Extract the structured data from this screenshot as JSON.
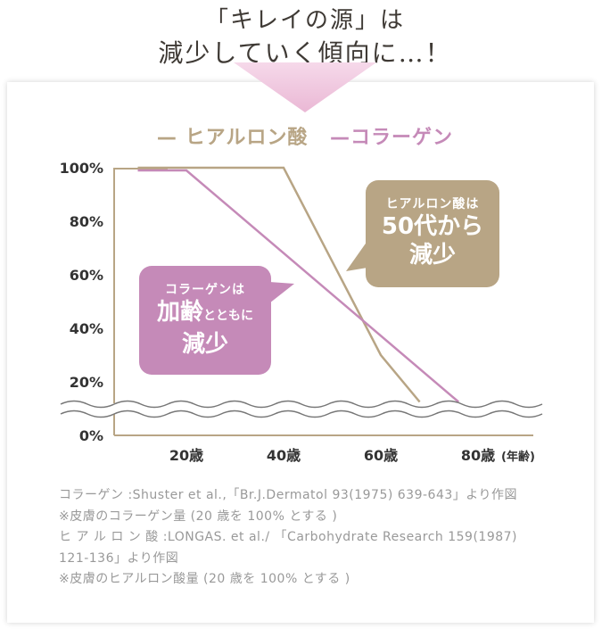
{
  "heading": {
    "line1": "「キレイの源」は",
    "line2": "減少していく傾向に…！"
  },
  "colors": {
    "hyaluronic": "#b8a585",
    "collagen": "#c58ab8",
    "arrow": "#f0c8df",
    "axis": "#b8a585",
    "wave": "#777777"
  },
  "chart_data": {
    "type": "line",
    "series": [
      {
        "name": "ヒアルロン酸",
        "points": [
          [
            10,
            100
          ],
          [
            40,
            100
          ],
          [
            60,
            30
          ],
          [
            68,
            12.5
          ]
        ]
      },
      {
        "name": "コラーゲン",
        "points": [
          [
            10,
            99
          ],
          [
            20,
            99
          ],
          [
            76,
            12.5
          ]
        ]
      }
    ],
    "xticks": [
      20,
      40,
      60,
      80
    ],
    "xtick_labels": [
      "20歳",
      "40歳",
      "60歳",
      "80歳"
    ],
    "x_unit_label": "(年齢)",
    "yticks": [
      0,
      20,
      40,
      60,
      80,
      100
    ],
    "ytick_labels": [
      "0%",
      "20%",
      "40%",
      "60%",
      "80%",
      "100%"
    ],
    "axis_break": "wavy lines between 0% and 20%",
    "legend_position": "top-center",
    "grid": false
  },
  "legend": {
    "hyaluronic": "— ヒアルロン酸",
    "collagen": "—コラーゲン"
  },
  "bubbles": {
    "hyaluronic": {
      "small": "ヒアルロン酸は",
      "big1": "50代から",
      "big2": "減少"
    },
    "collagen": {
      "small": "コラーゲンは",
      "big1a": "加齢",
      "mid": "とともに",
      "big2": "減少"
    }
  },
  "notes": [
    "コラーゲン :Shuster et al.,「Br.J.Dermatol 93(1975) 639-643」より作図",
    "※皮膚のコラーゲン量 (20 歳を 100% とする )",
    "ヒ ア ル ロ ン 酸  :LONGAS. et al./ 「Carbohydrate Research 159(1987)",
    "121-136」より作図",
    "※皮膚のヒアルロン酸量 (20 歳を 100% とする )"
  ]
}
